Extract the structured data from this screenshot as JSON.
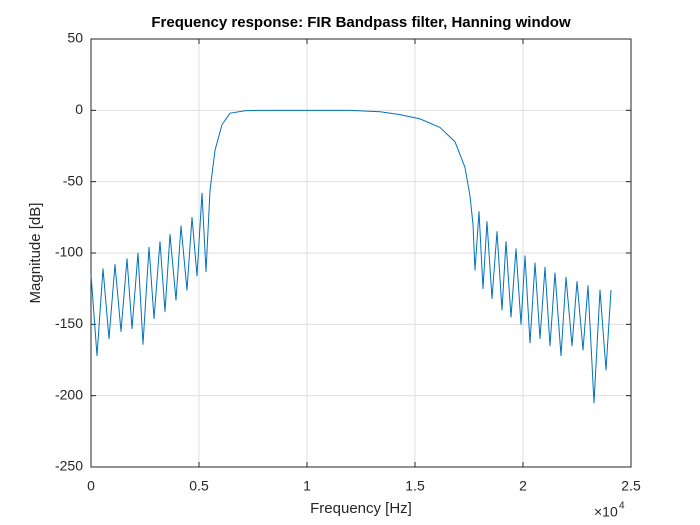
{
  "chart_data": {
    "type": "line",
    "title": "Frequency response: FIR Bandpass filter, Hanning window",
    "x_label": "Frequency [Hz]",
    "y_label": "Magnitude [dB]",
    "x_multiplier": {
      "base": "×10",
      "exponent": "4"
    },
    "color": "#0072bd",
    "grid": true,
    "xlim": [
      0,
      25000
    ],
    "xticks": [
      0,
      {
        "value": 5000,
        "label": "0.5"
      },
      {
        "value": 10000,
        "label": "1"
      },
      {
        "value": 15000,
        "label": "1.5"
      },
      {
        "value": 20000,
        "label": "2"
      },
      {
        "value": 25000,
        "label": "2.5"
      }
    ],
    "ylim": [
      -250,
      50
    ],
    "yticks": [
      -250,
      -200,
      -150,
      -100,
      -50,
      0,
      50
    ],
    "x": [
      0,
      278,
      556,
      833,
      1111,
      1389,
      1667,
      1898,
      2176,
      2407,
      2685,
      2917,
      3194,
      3426,
      3657,
      3935,
      4167,
      4444,
      4676,
      4907,
      5139,
      5324,
      5510,
      5741,
      6065,
      6435,
      7130,
      7824,
      11991,
      13380,
      14306,
      15232,
      16157,
      16852,
      17315,
      17546,
      17685,
      17778,
      17963,
      18148,
      18333,
      18565,
      18796,
      19028,
      19213,
      19444,
      19676,
      19907,
      20093,
      20324,
      20556,
      20787,
      21019,
      21250,
      21481,
      21759,
      21991,
      22269,
      22500,
      22778,
      23009,
      23287,
      23565,
      23843,
      24074
    ],
    "values": [
      -115,
      -172,
      -111,
      -160,
      -108,
      -155,
      -104,
      -153,
      -100,
      -164,
      -96,
      -146,
      -92,
      -141,
      -87,
      -133,
      -81,
      -126,
      -75,
      -116,
      -58,
      -113,
      -56,
      -28,
      -10,
      -2,
      -0.3,
      0,
      0,
      -1,
      -3,
      -6,
      -12,
      -22,
      -40,
      -60,
      -80,
      -112,
      -71,
      -125,
      -78,
      -132,
      -85,
      -140,
      -92,
      -145,
      -97,
      -150,
      -102,
      -163,
      -107,
      -160,
      -110,
      -165,
      -114,
      -172,
      -117,
      -165,
      -120,
      -168,
      -123,
      -205,
      -126,
      -182,
      -126
    ]
  }
}
